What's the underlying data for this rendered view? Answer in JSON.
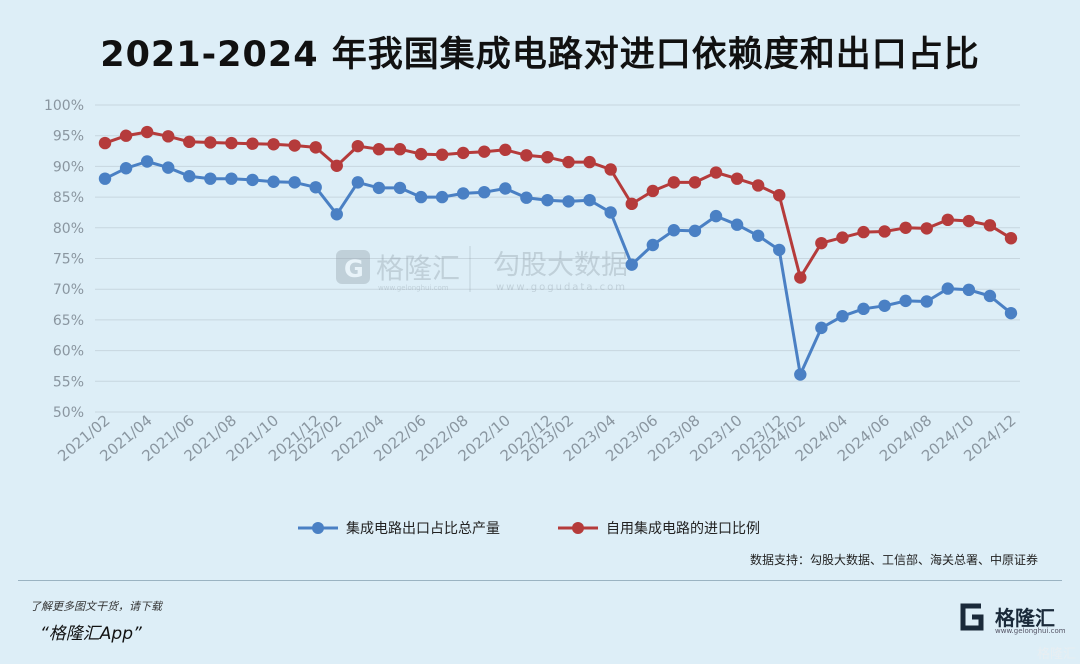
{
  "title": "2021-2024 年我国集成电路对进口依赖度和出口占比",
  "source": "数据支持：勾股大数据、工信部、海关总署、中原证券",
  "promo": {
    "line1": "了解更多图文干货，请下载",
    "line2": "“格隆汇App”"
  },
  "brand": {
    "name": "格隆汇",
    "url": "www.gelonghui.com"
  },
  "watermark": {
    "left_name": "格隆汇",
    "left_url": "www.gelonghui.com",
    "right_name": "勾股大数据",
    "right_url": "www.gogudata.com"
  },
  "corner_mark": "格隆汇",
  "colors": {
    "export_series": "#4a80c4",
    "import_series": "#b53b3b",
    "grid": "#c7d6df",
    "background": "#ddeef7"
  },
  "chart_data": {
    "type": "line",
    "x": [
      "2021/02",
      "2021/03",
      "2021/04",
      "2021/05",
      "2021/06",
      "2021/07",
      "2021/08",
      "2021/09",
      "2021/10",
      "2021/11",
      "2021/12",
      "2022/02",
      "2022/03",
      "2022/04",
      "2022/05",
      "2022/06",
      "2022/07",
      "2022/08",
      "2022/09",
      "2022/10",
      "2022/11",
      "2022/12",
      "2023/02",
      "2023/03",
      "2023/04",
      "2023/05",
      "2023/06",
      "2023/07",
      "2023/08",
      "2023/09",
      "2023/10",
      "2023/11",
      "2023/12",
      "2024/02",
      "2024/03",
      "2024/04",
      "2024/05",
      "2024/06",
      "2024/07",
      "2024/08",
      "2024/09",
      "2024/10",
      "2024/11",
      "2024/12"
    ],
    "x_tick_labels": [
      "2021/02",
      "2021/04",
      "2021/06",
      "2021/08",
      "2021/10",
      "2021/12",
      "2022/02",
      "2022/04",
      "2022/06",
      "2022/08",
      "2022/10",
      "2022/12",
      "2023/02",
      "2023/04",
      "2023/06",
      "2023/08",
      "2023/10",
      "2023/12",
      "2024/02",
      "2024/04",
      "2024/06",
      "2024/08",
      "2024/10",
      "2024/12"
    ],
    "ylim": [
      50,
      100
    ],
    "y_ticks": [
      "50%",
      "55%",
      "60%",
      "65%",
      "70%",
      "75%",
      "80%",
      "85%",
      "90%",
      "95%",
      "100%"
    ],
    "grid": true,
    "legend_position": "bottom",
    "series": [
      {
        "name": "集成电路出口占比总产量",
        "color": "#4a80c4",
        "values": [
          88.0,
          89.7,
          90.8,
          89.8,
          88.4,
          88.0,
          88.0,
          87.8,
          87.5,
          87.4,
          86.6,
          82.2,
          87.4,
          86.5,
          86.5,
          85.0,
          85.0,
          85.6,
          85.8,
          86.4,
          84.9,
          84.5,
          84.3,
          84.5,
          82.5,
          74.0,
          77.2,
          79.6,
          79.5,
          81.9,
          80.5,
          78.7,
          76.4,
          56.1,
          63.7,
          65.6,
          66.8,
          67.3,
          68.1,
          68.0,
          70.1,
          69.9,
          68.9,
          66.1
        ]
      },
      {
        "name": "自用集成电路的进口比例",
        "color": "#b53b3b",
        "values": [
          93.8,
          95.0,
          95.6,
          94.9,
          94.0,
          93.9,
          93.8,
          93.7,
          93.6,
          93.4,
          93.1,
          90.1,
          93.3,
          92.8,
          92.8,
          92.0,
          91.9,
          92.2,
          92.4,
          92.7,
          91.8,
          91.5,
          90.7,
          90.7,
          89.5,
          83.9,
          86.0,
          87.4,
          87.4,
          89.0,
          88.0,
          86.9,
          85.3,
          71.9,
          77.5,
          78.4,
          79.3,
          79.4,
          80.0,
          79.9,
          81.3,
          81.1,
          80.4,
          78.3
        ]
      }
    ]
  }
}
